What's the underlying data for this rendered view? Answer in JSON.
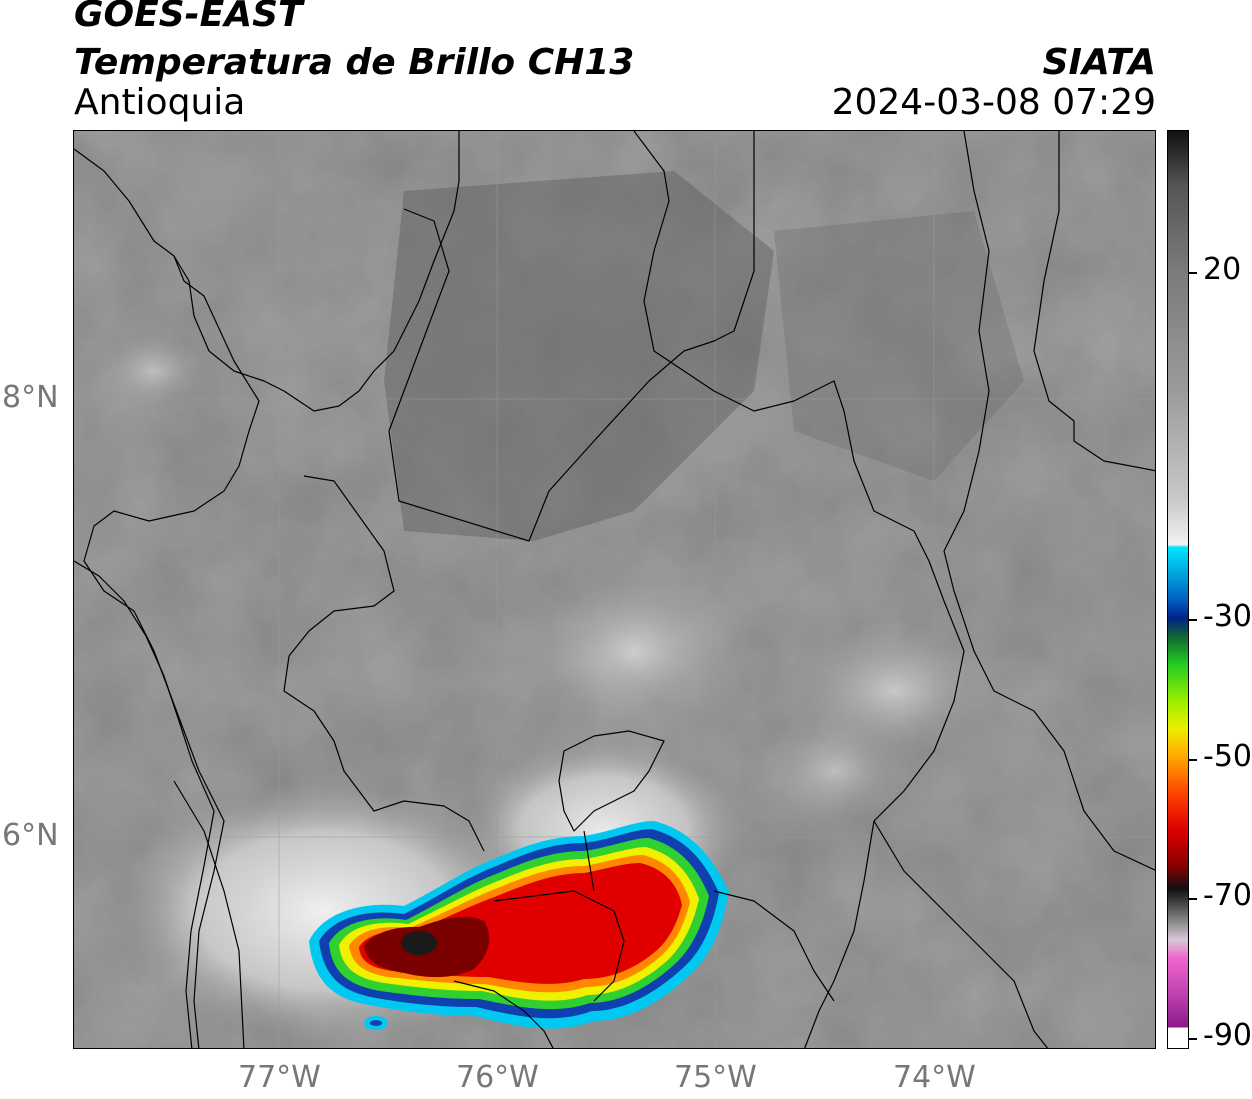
{
  "header": {
    "title_line1": "GOES-EAST",
    "title_line2": "Temperatura de Brillo CH13",
    "region": "Antioquia",
    "brand": "SIATA",
    "timestamp": "2024-03-08 07:29"
  },
  "axes": {
    "latitude_labels": [
      "8°N",
      "6°N"
    ],
    "longitude_labels": [
      "77°W",
      "76°W",
      "75°W",
      "74°W"
    ]
  },
  "colorbar": {
    "tick_labels": [
      "20",
      "-30",
      "-50",
      "-70",
      "-90"
    ],
    "colors": {
      "gray_warm": "#888888",
      "white_mid": "#f2f2f2",
      "cyan": "#00d5ff",
      "blue": "#003399",
      "green": "#22cc22",
      "yellow": "#eeee00",
      "orange": "#ff9900",
      "red": "#ee0000",
      "dark_red": "#660000",
      "black": "#111111",
      "pink": "#e879d0",
      "purple": "#a020a0"
    }
  },
  "storm_colors": {
    "outer": "#00c8f0",
    "blue": "#1040b0",
    "green": "#30d030",
    "yellow": "#f0f000",
    "orange": "#ff8800",
    "red": "#e00000",
    "dark_red": "#7a0000",
    "core": "#1a1a1a"
  }
}
